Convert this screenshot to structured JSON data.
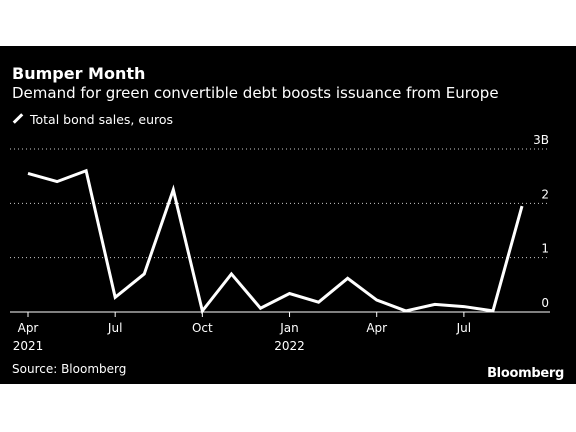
{
  "title": "Bumper Month",
  "subtitle": "Demand for green convertible debt boosts issuance from Europe",
  "legend_label": "Total bond sales, euros",
  "source": "Source: Bloomberg",
  "brand": "Bloomberg",
  "colors": {
    "background": "#000000",
    "line": "#ffffff",
    "grid": "#ffffff",
    "text": "#ffffff"
  },
  "chart_data": {
    "type": "line",
    "x": [
      "2021-04",
      "2021-05",
      "2021-06",
      "2021-07",
      "2021-08",
      "2021-09",
      "2021-10",
      "2021-11",
      "2021-12",
      "2022-01",
      "2022-02",
      "2022-03",
      "2022-04",
      "2022-05",
      "2022-06",
      "2022-07",
      "2022-08",
      "2022-09"
    ],
    "series": [
      {
        "name": "Total bond sales, euros",
        "values": [
          2.55,
          2.4,
          2.6,
          0.27,
          0.7,
          2.25,
          0.02,
          0.7,
          0.07,
          0.34,
          0.18,
          0.62,
          0.22,
          0.02,
          0.14,
          0.1,
          0.02,
          1.95
        ]
      }
    ],
    "ylim": [
      0,
      3
    ],
    "yticks": [
      "3B",
      "2",
      "1",
      "0"
    ],
    "ytick_values": [
      3,
      2,
      1,
      0
    ],
    "xticks": [
      {
        "label": "Apr",
        "year": "2021",
        "index": 0
      },
      {
        "label": "Jul",
        "year": "",
        "index": 3
      },
      {
        "label": "Oct",
        "year": "",
        "index": 6
      },
      {
        "label": "Jan",
        "year": "2022",
        "index": 9
      },
      {
        "label": "Apr",
        "year": "",
        "index": 12
      },
      {
        "label": "Jul",
        "year": "",
        "index": 15
      }
    ],
    "grid": true,
    "xlabel": "",
    "ylabel": ""
  }
}
